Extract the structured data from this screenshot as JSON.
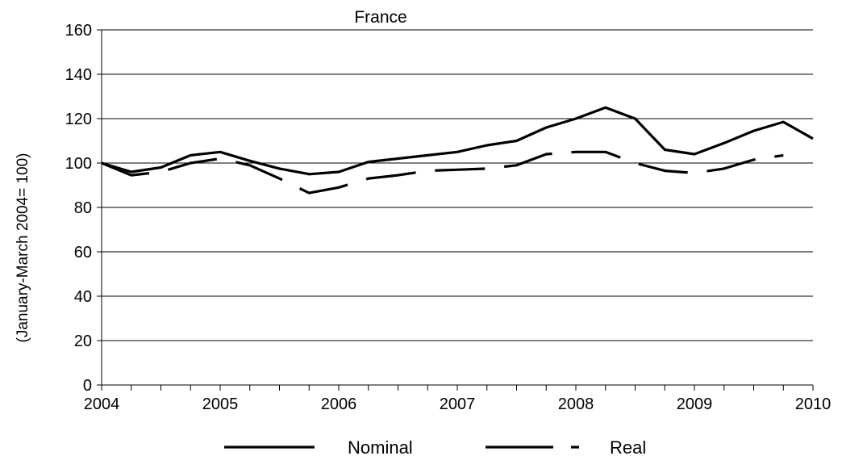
{
  "chart_data": {
    "type": "line",
    "title": "France",
    "xlabel": "",
    "ylabel": "(January-March 2004= 100)",
    "ylim": [
      0,
      160
    ],
    "yticks": [
      0,
      20,
      40,
      60,
      80,
      100,
      120,
      140,
      160
    ],
    "xlim": [
      2004,
      2010
    ],
    "xticks": [
      "2004",
      "2005",
      "2006",
      "2007",
      "2008",
      "2009",
      "2010"
    ],
    "grid": "horizontal",
    "legend": "bottom",
    "x": [
      2004.0,
      2004.25,
      2004.5,
      2004.75,
      2005.0,
      2005.25,
      2005.5,
      2005.75,
      2006.0,
      2006.25,
      2006.5,
      2006.75,
      2007.0,
      2007.25,
      2007.5,
      2007.75,
      2008.0,
      2008.25,
      2008.5,
      2008.75,
      2009.0,
      2009.25,
      2009.5,
      2009.75,
      2010.0
    ],
    "series": [
      {
        "name": "Nominal",
        "style": "solid",
        "values": [
          100,
          96,
          98,
          103.5,
          105,
          101,
          97.5,
          95,
          96,
          100.5,
          102,
          103.5,
          105,
          108,
          110,
          116,
          120,
          125,
          120,
          106,
          104,
          109,
          114.5,
          118.5,
          111
        ]
      },
      {
        "name": "Real",
        "style": "dashed",
        "values": [
          100,
          94.5,
          96,
          100,
          102,
          99,
          93,
          86.5,
          89,
          93,
          94.5,
          96.5,
          97,
          97.5,
          99,
          104,
          105,
          105,
          100,
          96.5,
          95.5,
          97.5,
          101.5,
          103.5,
          null
        ]
      }
    ]
  }
}
